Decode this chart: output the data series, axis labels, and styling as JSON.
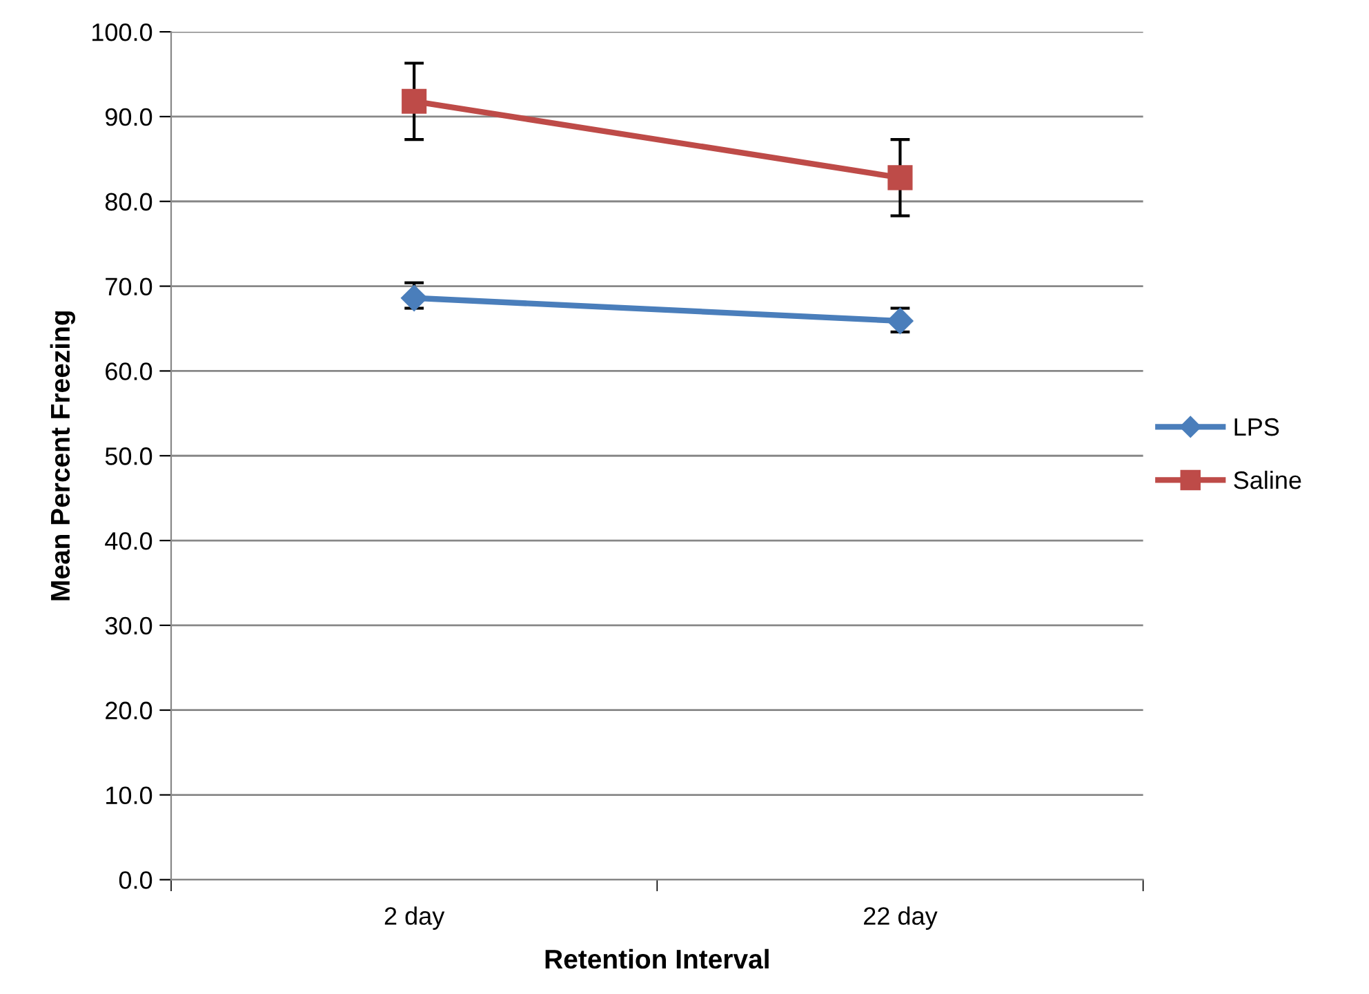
{
  "chart_data": {
    "type": "line",
    "xlabel": "Retention Interval",
    "ylabel": "Mean Percent Freezing",
    "categories": [
      "2 day",
      "22 day"
    ],
    "series": [
      {
        "name": "LPS",
        "color": "#4a7ebb",
        "marker": "diamond",
        "values": [
          68.6,
          65.9
        ],
        "errors": [
          [
            67.4,
            70.4
          ],
          [
            64.6,
            67.4
          ]
        ]
      },
      {
        "name": "Saline",
        "color": "#be4b48",
        "marker": "square",
        "values": [
          91.8,
          82.8
        ],
        "errors": [
          [
            87.3,
            96.3
          ],
          [
            78.3,
            87.3
          ]
        ]
      }
    ],
    "ylim": [
      0,
      100
    ],
    "yticks": [
      {
        "value": 0,
        "label": "0.0"
      },
      {
        "value": 10,
        "label": "10.0"
      },
      {
        "value": 20,
        "label": "20.0"
      },
      {
        "value": 30,
        "label": "30.0"
      },
      {
        "value": 40,
        "label": "40.0"
      },
      {
        "value": 50,
        "label": "50.0"
      },
      {
        "value": 60,
        "label": "60.0"
      },
      {
        "value": 70,
        "label": "70.0"
      },
      {
        "value": 80,
        "label": "80.0"
      },
      {
        "value": 90,
        "label": "90.0"
      },
      {
        "value": 100,
        "label": "100.0"
      }
    ],
    "grid": "y",
    "legend": "right",
    "line_style": "solid"
  }
}
